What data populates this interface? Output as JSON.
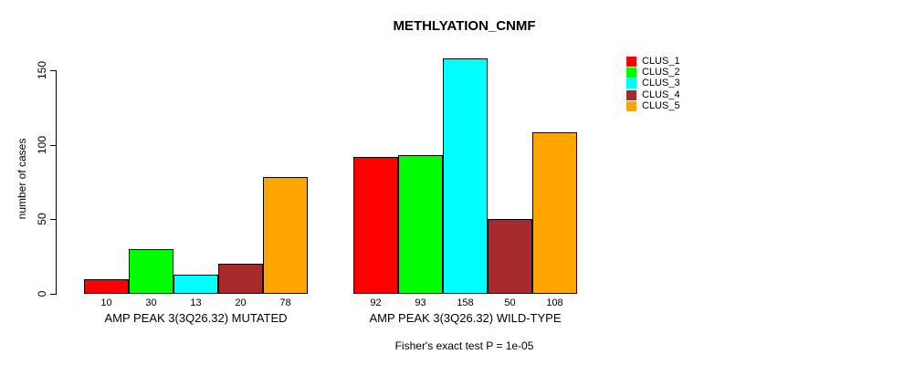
{
  "chart_data": {
    "type": "bar",
    "title": "METHLYATION_CNMF",
    "ylabel": "number of cases",
    "yticks": [
      0,
      50,
      100,
      150
    ],
    "ylim": [
      0,
      160
    ],
    "grid": false,
    "legend_position": "top-right",
    "legend": [
      {
        "label": "CLUS_1",
        "color": "#ff0000"
      },
      {
        "label": "CLUS_2",
        "color": "#00ff00"
      },
      {
        "label": "CLUS_3",
        "color": "#00ffff"
      },
      {
        "label": "CLUS_4",
        "color": "#a52a2a"
      },
      {
        "label": "CLUS_5",
        "color": "#ffa500"
      }
    ],
    "groups": [
      {
        "label": "AMP PEAK 3(3Q26.32) MUTATED",
        "values": [
          10,
          30,
          13,
          20,
          78
        ]
      },
      {
        "label": "AMP PEAK 3(3Q26.32) WILD-TYPE",
        "values": [
          92,
          93,
          158,
          50,
          108
        ]
      }
    ],
    "annotation": "Fisher's exact test P = 1e-05"
  }
}
